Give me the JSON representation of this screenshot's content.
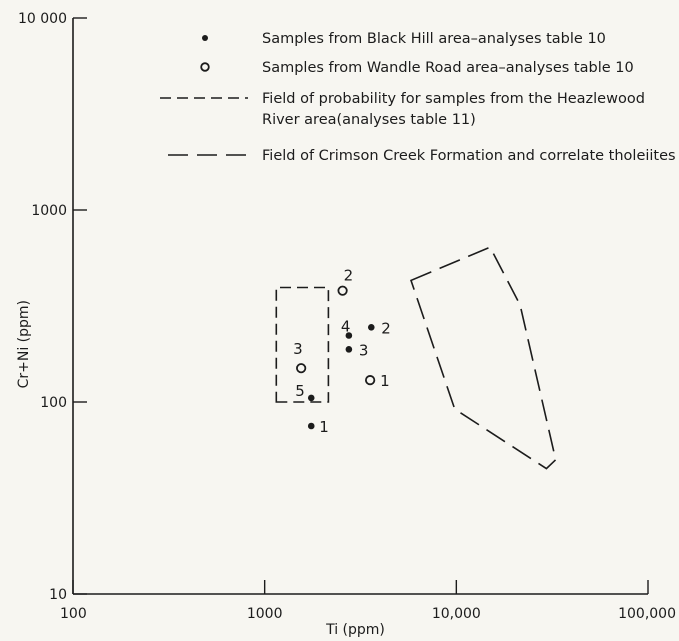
{
  "chart_data": {
    "type": "scatter",
    "xlabel": "Ti (ppm)",
    "ylabel": "Cr+Ni (ppm)",
    "x_scale": "log",
    "y_scale": "log",
    "xlim": [
      100,
      100000
    ],
    "ylim": [
      10,
      10000
    ],
    "x_tick_labels": [
      "100",
      "1000",
      "10,000",
      "100,000"
    ],
    "y_tick_labels": [
      "10",
      "100",
      "1000",
      "10 000"
    ],
    "grid": false,
    "legend_position": "top-right",
    "legend": [
      {
        "symbol": "filled-dot",
        "label": "Samples from Black Hill area–analyses table 10"
      },
      {
        "symbol": "open-circle",
        "label": "Samples from Wandle Road area–analyses table 10"
      },
      {
        "symbol": "short-dash",
        "label": "Field of probability for samples from the Heazlewood",
        "label_line2": "River area(analyses table 11)"
      },
      {
        "symbol": "long-dash",
        "label": "Field of Crimson Creek Formation and correlate tholeiites"
      }
    ],
    "series": [
      {
        "name": "Samples from Black Hill area–analyses table 10",
        "marker": "filled-dot",
        "points": [
          {
            "x": 1750,
            "y": 75,
            "label": "1"
          },
          {
            "x": 3600,
            "y": 245,
            "label": "2"
          },
          {
            "x": 2750,
            "y": 188,
            "label": "3"
          },
          {
            "x": 2750,
            "y": 222,
            "label": "4"
          },
          {
            "x": 1750,
            "y": 105,
            "label": "5"
          }
        ]
      },
      {
        "name": "Samples from Wandle Road area–analyses table 10",
        "marker": "open-circle",
        "points": [
          {
            "x": 3550,
            "y": 130,
            "label": "1"
          },
          {
            "x": 2550,
            "y": 380,
            "label": "2"
          },
          {
            "x": 1550,
            "y": 150,
            "label": "3"
          }
        ]
      }
    ],
    "fields": [
      {
        "name": "Field of probability for samples from the Heazlewood River area(analyses table 11)",
        "style": "short-dash",
        "polygon": [
          [
            1150,
            100
          ],
          [
            2150,
            100
          ],
          [
            2150,
            395
          ],
          [
            1150,
            395
          ]
        ]
      },
      {
        "name": "Field of Crimson Creek Formation and correlate tholeiites",
        "style": "long-dash",
        "polygon": [
          [
            5800,
            430
          ],
          [
            15000,
            640
          ],
          [
            21500,
            320
          ],
          [
            33000,
            50
          ],
          [
            29500,
            45
          ],
          [
            9800,
            92
          ]
        ]
      }
    ]
  }
}
